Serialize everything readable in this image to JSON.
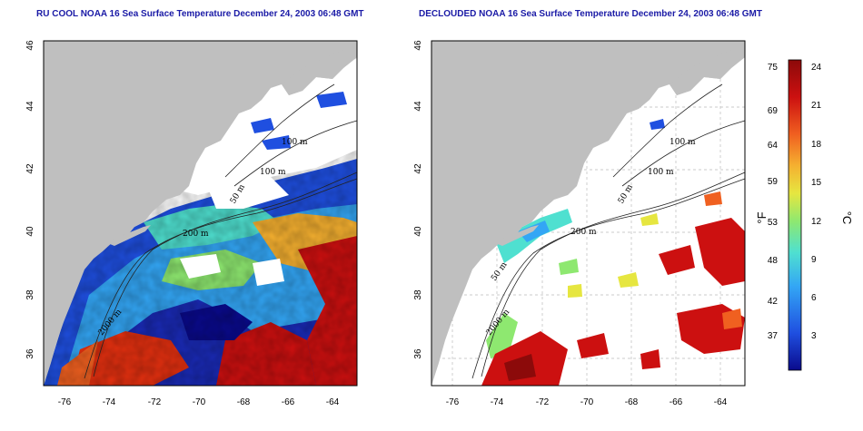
{
  "panels": [
    {
      "title": "RU COOL NOAA 16 Sea Surface Temperature December 24, 2003 06:48 GMT",
      "lon_ticks": [
        "-76",
        "-74",
        "-72",
        "-70",
        "-68",
        "-66",
        "-64"
      ],
      "lat_ticks": [
        "36",
        "38",
        "40",
        "42",
        "44",
        "46"
      ],
      "contour_labels": [
        "100 m",
        "100 m",
        "50 m",
        "200 m",
        "2000 m"
      ]
    },
    {
      "title": "DECLOUDED NOAA 16 Sea Surface Temperature December 24, 2003 06:48 GMT",
      "lon_ticks": [
        "-76",
        "-74",
        "-72",
        "-70",
        "-68",
        "-66",
        "-64"
      ],
      "lat_ticks": [
        "36",
        "38",
        "40",
        "42",
        "44",
        "46"
      ],
      "contour_labels": [
        "100 m",
        "100 m",
        "50 m",
        "200 m",
        "50 m",
        "2000 m"
      ]
    }
  ],
  "colorbar": {
    "fahrenheit_ticks": [
      "75",
      "69",
      "64",
      "59",
      "53",
      "48",
      "42",
      "37"
    ],
    "celsius_ticks": [
      "24",
      "21",
      "18",
      "15",
      "12",
      "9",
      "6",
      "3"
    ],
    "fahrenheit_unit": "°F",
    "celsius_unit": "°C"
  },
  "map_extent": {
    "lon": [
      -77,
      -63
    ],
    "lat": [
      35,
      46
    ]
  },
  "colors": {
    "land": "#bfbfbf",
    "cloud": "#ffffff",
    "title": "#1a1aa6",
    "scale": [
      "#0a0a8c",
      "#1f4fe0",
      "#33a6f5",
      "#4fe0d0",
      "#8ee870",
      "#e6e640",
      "#f5b030",
      "#f06020",
      "#cc1010",
      "#8c0a0a"
    ]
  }
}
